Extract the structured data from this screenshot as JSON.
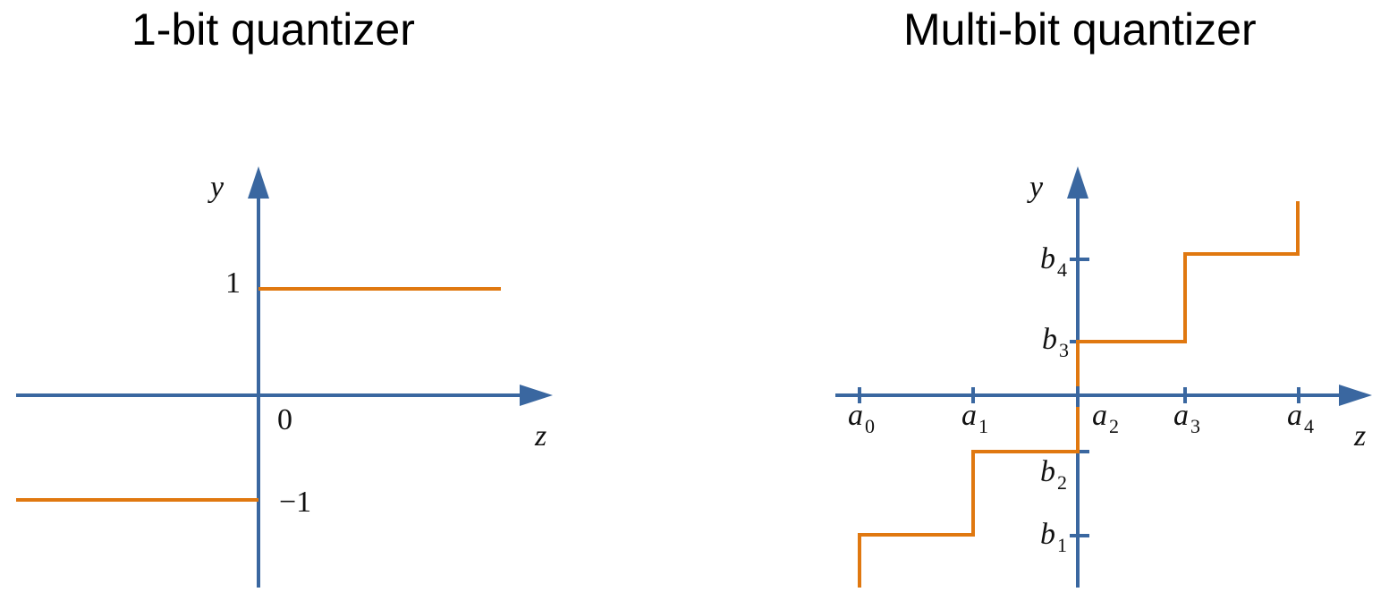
{
  "titles": {
    "left": "1-bit quantizer",
    "right": "Multi-bit quantizer"
  },
  "left_plot": {
    "y_axis_label": "y",
    "x_axis_label": "z",
    "tick_one": "1",
    "tick_zero": "0",
    "tick_neg_one": "−1"
  },
  "right_plot": {
    "y_axis_label": "y",
    "x_axis_label": "z",
    "a_letter": "a",
    "b_letter": "b",
    "a_labels": [
      {
        "letter": "a",
        "sub": "0"
      },
      {
        "letter": "a",
        "sub": "1"
      },
      {
        "letter": "a",
        "sub": "2"
      },
      {
        "letter": "a",
        "sub": "3"
      },
      {
        "letter": "a",
        "sub": "4"
      }
    ],
    "b_labels": [
      {
        "letter": "b",
        "sub": "1"
      },
      {
        "letter": "b",
        "sub": "2"
      },
      {
        "letter": "b",
        "sub": "3"
      },
      {
        "letter": "b",
        "sub": "4"
      }
    ]
  },
  "colors": {
    "axis": "#3a67a0",
    "curve": "#e07810",
    "text": "#111111"
  }
}
